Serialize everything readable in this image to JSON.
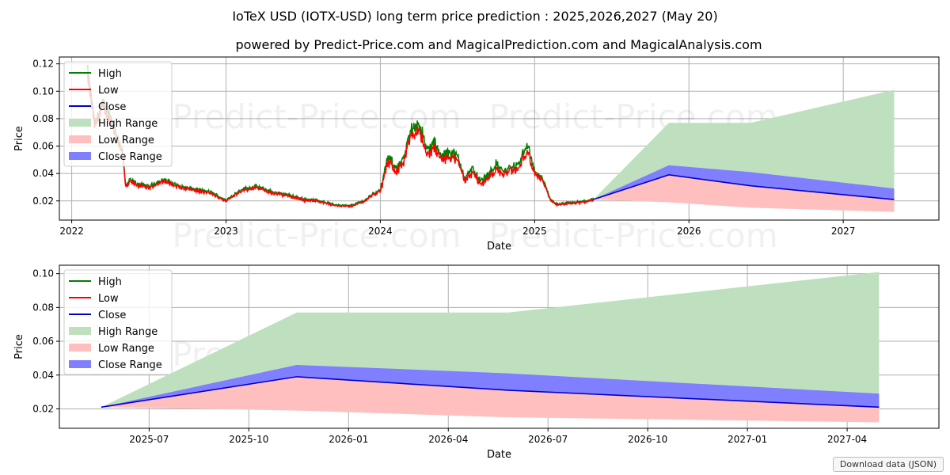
{
  "title": "IoTeX USD (IOTX-USD) long term price prediction : 2025,2026,2027 (May 20)",
  "subtitle": "powered by Predict-Price.com and MagicalPrediction.com and MagicalAnalysis.com",
  "watermark": "Predict-Price.com",
  "download_label": "Download data (JSON)",
  "colors": {
    "high": "#008000",
    "low": "#ff0000",
    "close": "#0000cc",
    "high_range": "#bfe0bf",
    "low_range": "#ffbfbf",
    "close_range": "#7f7fff"
  },
  "chart_data": [
    {
      "type": "line",
      "name": "history-and-forecast",
      "xlabel": "Date",
      "ylabel": "Price",
      "x_ticks": [
        "2022",
        "2023",
        "2024",
        "2025",
        "2026",
        "2027"
      ],
      "x_tick_values": [
        2022.0,
        2023.0,
        2024.0,
        2025.0,
        2026.0,
        2027.0
      ],
      "xlim": [
        2021.92,
        2027.62
      ],
      "y_ticks": [
        "0.02",
        "0.04",
        "0.06",
        "0.08",
        "0.10",
        "0.12"
      ],
      "y_tick_values": [
        0.02,
        0.04,
        0.06,
        0.08,
        0.1,
        0.12
      ],
      "ylim": [
        0.006,
        0.125
      ],
      "grid": true,
      "legend": {
        "location": "top-left",
        "entries": [
          "High",
          "Low",
          "Close",
          "High Range",
          "Low Range",
          "Close Range"
        ]
      },
      "history_anchors": {
        "x": [
          2022.1,
          2022.15,
          2022.2,
          2022.25,
          2022.3,
          2022.33,
          2022.35,
          2022.38,
          2022.42,
          2022.5,
          2022.6,
          2022.7,
          2022.8,
          2022.9,
          2023.0,
          2023.1,
          2023.2,
          2023.3,
          2023.4,
          2023.5,
          2023.6,
          2023.7,
          2023.8,
          2023.9,
          2023.95,
          2024.0,
          2024.05,
          2024.1,
          2024.15,
          2024.2,
          2024.25,
          2024.3,
          2024.35,
          2024.4,
          2024.45,
          2024.5,
          2024.55,
          2024.6,
          2024.65,
          2024.7,
          2024.75,
          2024.8,
          2024.85,
          2024.9,
          2024.95,
          2025.0,
          2025.05,
          2025.1,
          2025.15,
          2025.2,
          2025.3,
          2025.38
        ],
        "values": [
          0.115,
          0.075,
          0.09,
          0.08,
          0.065,
          0.055,
          0.03,
          0.035,
          0.032,
          0.03,
          0.035,
          0.03,
          0.028,
          0.026,
          0.02,
          0.028,
          0.03,
          0.026,
          0.024,
          0.021,
          0.02,
          0.017,
          0.016,
          0.02,
          0.025,
          0.027,
          0.05,
          0.043,
          0.048,
          0.07,
          0.075,
          0.055,
          0.06,
          0.05,
          0.055,
          0.05,
          0.036,
          0.042,
          0.033,
          0.038,
          0.045,
          0.04,
          0.043,
          0.045,
          0.06,
          0.04,
          0.036,
          0.021,
          0.017,
          0.018,
          0.019,
          0.021
        ]
      },
      "forecast": {
        "x": [
          2025.38,
          2025.87,
          2026.4,
          2027.33
        ],
        "high": [
          0.021,
          0.077,
          0.077,
          0.101
        ],
        "close_upper": [
          0.021,
          0.046,
          0.041,
          0.029
        ],
        "close": [
          0.021,
          0.039,
          0.031,
          0.021
        ],
        "low_lower": [
          0.021,
          0.019,
          0.015,
          0.012
        ]
      }
    },
    {
      "type": "area",
      "name": "forecast-zoom",
      "xlabel": "Date",
      "ylabel": "Price",
      "x_ticks": [
        "2025-07",
        "2025-10",
        "2026-01",
        "2026-04",
        "2026-07",
        "2026-10",
        "2027-01",
        "2027-04"
      ],
      "x_tick_values": [
        2025.5,
        2025.75,
        2026.0,
        2026.25,
        2026.5,
        2026.75,
        2027.0,
        2027.25
      ],
      "xlim": [
        2025.275,
        2027.48
      ],
      "y_ticks": [
        "0.02",
        "0.04",
        "0.06",
        "0.08",
        "0.10"
      ],
      "y_tick_values": [
        0.02,
        0.04,
        0.06,
        0.08,
        0.1
      ],
      "ylim": [
        0.0085,
        0.105
      ],
      "grid": true,
      "legend": {
        "location": "top-left",
        "entries": [
          "High",
          "Low",
          "Close",
          "High Range",
          "Low Range",
          "Close Range"
        ]
      },
      "forecast": {
        "x": [
          2025.38,
          2025.87,
          2026.4,
          2027.33
        ],
        "high": [
          0.021,
          0.077,
          0.077,
          0.101
        ],
        "close_upper": [
          0.021,
          0.046,
          0.041,
          0.029
        ],
        "close": [
          0.021,
          0.039,
          0.031,
          0.021
        ],
        "low_lower": [
          0.021,
          0.019,
          0.015,
          0.012
        ]
      }
    }
  ]
}
